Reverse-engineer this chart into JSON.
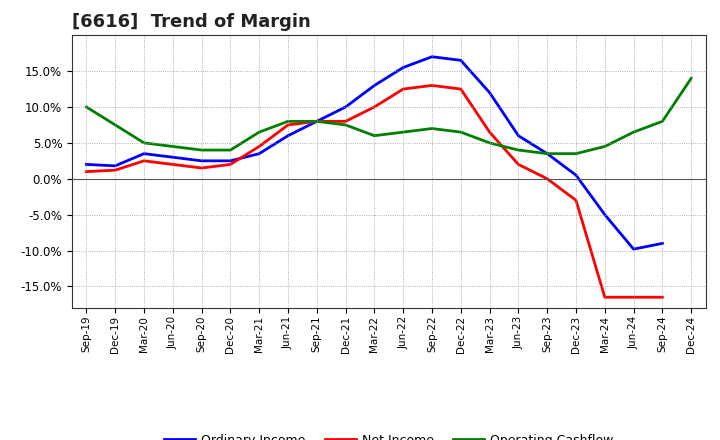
{
  "title": "[6616]  Trend of Margin",
  "x_labels": [
    "Sep-19",
    "Dec-19",
    "Mar-20",
    "Jun-20",
    "Sep-20",
    "Dec-20",
    "Mar-21",
    "Jun-21",
    "Sep-21",
    "Dec-21",
    "Mar-22",
    "Jun-22",
    "Sep-22",
    "Dec-22",
    "Mar-23",
    "Jun-23",
    "Sep-23",
    "Dec-23",
    "Mar-24",
    "Jun-24",
    "Sep-24",
    "Dec-24"
  ],
  "ordinary_income": [
    2.0,
    1.8,
    3.5,
    3.0,
    2.5,
    2.5,
    3.5,
    6.0,
    8.0,
    10.0,
    13.0,
    15.5,
    17.0,
    16.5,
    12.0,
    6.0,
    3.5,
    0.5,
    -5.0,
    -9.8,
    -9.0,
    null
  ],
  "net_income": [
    1.0,
    1.2,
    2.5,
    2.0,
    1.5,
    2.0,
    4.5,
    7.5,
    8.0,
    8.0,
    10.0,
    12.5,
    13.0,
    12.5,
    6.5,
    2.0,
    0.0,
    -3.0,
    -16.5,
    -16.5,
    -16.5,
    null
  ],
  "operating_cashflow": [
    10.0,
    7.5,
    5.0,
    4.5,
    4.0,
    4.0,
    6.5,
    8.0,
    8.0,
    7.5,
    6.0,
    6.5,
    7.0,
    6.5,
    5.0,
    4.0,
    3.5,
    3.5,
    4.5,
    6.5,
    8.0,
    14.0
  ],
  "colors": {
    "ordinary_income": "#0000ff",
    "net_income": "#ff0000",
    "operating_cashflow": "#008000"
  },
  "ylim": [
    -18,
    20
  ],
  "yticks": [
    -15,
    -10,
    -5,
    0,
    5,
    10,
    15
  ],
  "background_color": "#ffffff",
  "grid_color": "#999999",
  "line_width": 2.0,
  "title_fontsize": 13,
  "legend_labels": [
    "Ordinary Income",
    "Net Income",
    "Operating Cashflow"
  ]
}
